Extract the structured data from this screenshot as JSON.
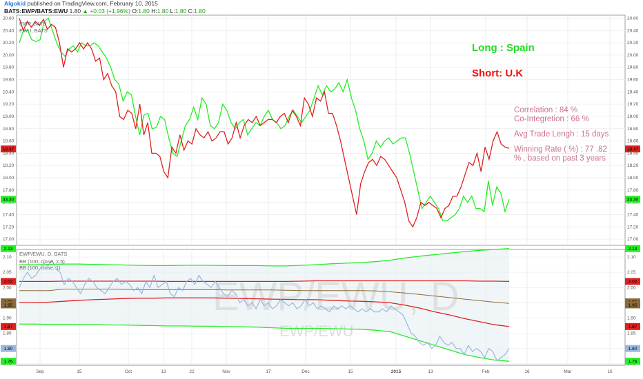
{
  "header": {
    "author": "Algokid",
    "published": "published on TradingView.com, February 10, 2015",
    "symbol": "BATS:EWP/BATS:EWU",
    "last": "1.80",
    "change": "+0.03 (+1.96%)",
    "ohlc": [
      {
        "k": "O:",
        "v": "1.80"
      },
      {
        "k": "H:",
        "v": "1.80"
      },
      {
        "k": "L:",
        "v": "1.80"
      },
      {
        "k": "C:",
        "v": "1.80"
      }
    ]
  },
  "annotations": {
    "long": "Long : Spain",
    "short": "Short: U.K",
    "correlation": "Correlation : 84 %",
    "cointegration": "Co-Integretion : 66 %",
    "avg_trade": "Avg Trade Lengh : 15 days",
    "winning_1": "Winning Rate ( %) : 77 .82",
    "winning_2": "% , based on past 3 years"
  },
  "colors": {
    "ewp": "#22ee22",
    "ewu": "#e02020",
    "ratio": "#9ab8dd",
    "bb_outer": "#22ee22",
    "bb_inner": "#e02020",
    "bb_basis": "#8b6a3a",
    "long_text": "#22dd22",
    "short_text": "#ee1111",
    "stats_text": "#c9748a",
    "band_fill": "#e6eef3"
  },
  "chart_data": [
    {
      "type": "line",
      "title": "",
      "legend": [
        "EWP, BATS",
        "EWU, BATS"
      ],
      "x_ticks": [
        "Sep",
        "15",
        "Oct",
        "13",
        "22",
        "Nov",
        "17",
        "Dec",
        "15",
        "2015",
        "13",
        "Feb",
        "16",
        "Mar",
        "16"
      ],
      "ylim": [
        16.9,
        20.65
      ],
      "y_ticks": [
        "17.00",
        "17.20",
        "17.40",
        "17.60",
        "17.80",
        "18.00",
        "18.20",
        "18.40",
        "18.60",
        "18.80",
        "19.00",
        "19.20",
        "19.40",
        "19.60",
        "19.80",
        "20.00",
        "20.20",
        "20.40",
        "20.60"
      ],
      "last_tags": {
        "ewu": "18.47",
        "ewp": "33.30"
      },
      "series": [
        {
          "name": "EWP, BATS",
          "values": [
            20.2,
            20.4,
            20.4,
            20.25,
            20.22,
            20.25,
            20.55,
            20.6,
            20.4,
            20.2,
            20.05,
            19.98,
            20.1,
            20.15,
            20.05,
            20.2,
            20.15,
            20.15,
            20.2,
            20.15,
            20.05,
            19.95,
            19.8,
            19.6,
            19.52,
            19.25,
            19.4,
            19.35,
            19.0,
            18.7,
            19.02,
            19.05,
            18.8,
            18.82,
            19.0,
            18.95,
            18.65,
            18.4,
            18.35,
            18.6,
            18.85,
            18.95,
            19.15,
            18.95,
            19.3,
            19.2,
            18.85,
            18.8,
            18.9,
            19.2,
            19.1,
            18.9,
            18.8,
            18.9,
            18.95,
            18.7,
            18.8,
            18.9,
            18.85,
            19.0,
            19.1,
            18.95,
            18.9,
            18.8,
            18.85,
            19.0,
            19.1,
            19.0,
            18.9,
            19.0,
            19.1,
            19.3,
            19.5,
            19.35,
            19.5,
            19.4,
            19.45,
            19.55,
            19.4,
            19.6,
            19.3,
            19.1,
            18.8,
            18.6,
            18.3,
            18.4,
            18.6,
            18.5,
            18.6,
            18.65,
            18.55,
            18.6,
            18.65,
            18.65,
            18.4,
            18.1,
            17.8,
            17.5,
            17.6,
            17.7,
            17.6,
            17.5,
            17.3,
            17.3,
            17.35,
            17.4,
            17.5,
            17.7,
            17.6,
            17.7,
            17.5,
            17.5,
            17.45,
            17.95,
            17.55,
            17.85,
            17.75,
            17.45,
            17.65
          ]
        },
        {
          "name": "EWU, BATS",
          "values": [
            20.6,
            20.4,
            20.55,
            20.45,
            20.55,
            20.48,
            20.58,
            20.42,
            20.5,
            20.45,
            20.2,
            19.8,
            20.1,
            20.05,
            20.1,
            20.2,
            20.1,
            20.2,
            20.1,
            19.9,
            19.95,
            19.6,
            19.7,
            19.5,
            19.4,
            19.0,
            18.95,
            19.1,
            19.05,
            18.8,
            19.2,
            18.7,
            18.9,
            18.4,
            18.4,
            18.35,
            18.1,
            18.0,
            18.5,
            18.4,
            18.7,
            18.45,
            18.6,
            18.55,
            18.8,
            18.7,
            18.65,
            18.75,
            18.6,
            18.65,
            18.75,
            18.75,
            18.55,
            18.65,
            18.9,
            18.65,
            18.85,
            18.95,
            18.9,
            19.0,
            18.85,
            18.9,
            18.95,
            18.95,
            18.9,
            19.0,
            19.05,
            18.9,
            19.1,
            19.0,
            18.85,
            19.3,
            19.2,
            19.0,
            19.3,
            19.25,
            19.4,
            19.05,
            19.05,
            18.85,
            18.6,
            18.3,
            18.0,
            17.7,
            17.4,
            17.9,
            18.1,
            18.25,
            18.3,
            18.2,
            18.35,
            18.3,
            18.2,
            18.1,
            18.0,
            17.8,
            17.6,
            17.3,
            17.2,
            17.35,
            17.6,
            17.55,
            17.6,
            17.55,
            17.5,
            17.35,
            17.5,
            17.55,
            17.7,
            17.7,
            17.85,
            18.05,
            18.25,
            18.2,
            18.4,
            18.1,
            18.5,
            18.3,
            18.6,
            18.75,
            18.55,
            18.5,
            18.48
          ]
        }
      ]
    },
    {
      "type": "line",
      "title": "EWP/EWU, D, BATS",
      "legend": [
        "BB (100, close, 2.5)",
        "BB (100, close, 1)"
      ],
      "watermark": "EWP/EWU, D",
      "watermark_sub": "EWP/EWU",
      "ylim": [
        1.745,
        2.125
      ],
      "y_ticks": [
        "1.75",
        "1.80",
        "1.85",
        "1.90",
        "1.95",
        "2.00",
        "2.05",
        "2.10"
      ],
      "last_tags": {
        "bb_upper_outer": "2.13",
        "bb_upper_inner": "2.02",
        "basis_a": "1.95",
        "basis_b": "1.95",
        "bb_lower_inner": "1.87",
        "ratio": "1.80",
        "bb_lower_outer": "1.76"
      },
      "series": [
        {
          "name": "EWP/EWU",
          "values": [
            2.0,
            2.03,
            2.05,
            2.03,
            2.04,
            2.06,
            2.08,
            2.07,
            2.09,
            2.06,
            2.05,
            2.01,
            2.03,
            2.02,
            2.0,
            1.98,
            2.01,
            2.03,
            2.02,
            2.0,
            1.99,
            1.98,
            2.0,
            2.02,
            2.03,
            2.01,
            2.02,
            2.01,
            1.99,
            2.0,
            1.98,
            2.02,
            2.0,
            2.04,
            2.0,
            2.01,
            2.02,
            1.98,
            1.97,
            2.0,
            1.99,
            2.02,
            2.03,
            2.01,
            2.04,
            2.02,
            2.01,
            2.0,
            2.02,
            2.0,
            1.98,
            1.97,
            1.99,
            1.98,
            1.95,
            1.96,
            1.94,
            1.95,
            1.93,
            1.96,
            1.94,
            1.95,
            1.93,
            1.94,
            1.96,
            1.95,
            1.94,
            1.95,
            1.93,
            1.94,
            1.96,
            1.94,
            1.95,
            1.93,
            1.94,
            1.93,
            1.92,
            1.94,
            1.93,
            1.94,
            1.93,
            1.94,
            1.93,
            1.92,
            1.93,
            1.92,
            1.93,
            1.92,
            1.92,
            1.93,
            1.92,
            1.94,
            1.93,
            1.92,
            1.91,
            1.88,
            1.85,
            1.84,
            1.82,
            1.81,
            1.82,
            1.8,
            1.81,
            1.84,
            1.82,
            1.81,
            1.82,
            1.8,
            1.8,
            1.78,
            1.81,
            1.79,
            1.8,
            1.79,
            1.77,
            1.8,
            1.79,
            1.76,
            1.77,
            1.78,
            1.8
          ]
        },
        {
          "name": "BB upper 2.5",
          "values": [
            2.075,
            2.075,
            2.076,
            2.077,
            2.077,
            2.076,
            2.075,
            2.074,
            2.073,
            2.072,
            2.072,
            2.073,
            2.073,
            2.073,
            2.072,
            2.072,
            2.072,
            2.071,
            2.071,
            2.073,
            2.075,
            2.078,
            2.08,
            2.082,
            2.085,
            2.09,
            2.097,
            2.103,
            2.108,
            2.113,
            2.118,
            2.122,
            2.125,
            2.128
          ]
        },
        {
          "name": "BB upper 1",
          "values": [
            2.02,
            2.02,
            2.02,
            2.021,
            2.021,
            2.021,
            2.021,
            2.021,
            2.021,
            2.021,
            2.02,
            2.02,
            2.02,
            2.02,
            2.02,
            2.02,
            2.02,
            2.02,
            2.02,
            2.021,
            2.022,
            2.022,
            2.022,
            2.022,
            2.022,
            2.022,
            2.022,
            2.022,
            2.022,
            2.022,
            2.022,
            2.021,
            2.021,
            2.02
          ]
        },
        {
          "name": "basis",
          "values": [
            1.99,
            1.99,
            1.99,
            1.995,
            1.995,
            1.995,
            1.995,
            1.994,
            1.993,
            1.993,
            1.993,
            1.993,
            1.993,
            1.993,
            1.992,
            1.992,
            1.992,
            1.992,
            1.991,
            1.99,
            1.99,
            1.99,
            1.99,
            1.99,
            1.989,
            1.986,
            1.982,
            1.977,
            1.972,
            1.967,
            1.962,
            1.957,
            1.952,
            1.948
          ]
        },
        {
          "name": "BB lower 1",
          "values": [
            1.95,
            1.95,
            1.952,
            1.955,
            1.958,
            1.96,
            1.962,
            1.964,
            1.965,
            1.965,
            1.966,
            1.966,
            1.966,
            1.966,
            1.965,
            1.964,
            1.963,
            1.962,
            1.961,
            1.96,
            1.96,
            1.958,
            1.956,
            1.955,
            1.953,
            1.95,
            1.942,
            1.932,
            1.92,
            1.91,
            1.898,
            1.888,
            1.878,
            1.872
          ]
        },
        {
          "name": "BB lower 2.5",
          "values": [
            1.88,
            1.88,
            1.879,
            1.879,
            1.878,
            1.878,
            1.877,
            1.877,
            1.876,
            1.875,
            1.874,
            1.874,
            1.873,
            1.873,
            1.872,
            1.871,
            1.87,
            1.868,
            1.866,
            1.866,
            1.866,
            1.865,
            1.864,
            1.863,
            1.86,
            1.855,
            1.84,
            1.825,
            1.81,
            1.795,
            1.78,
            1.77,
            1.762,
            1.758
          ]
        }
      ]
    }
  ]
}
